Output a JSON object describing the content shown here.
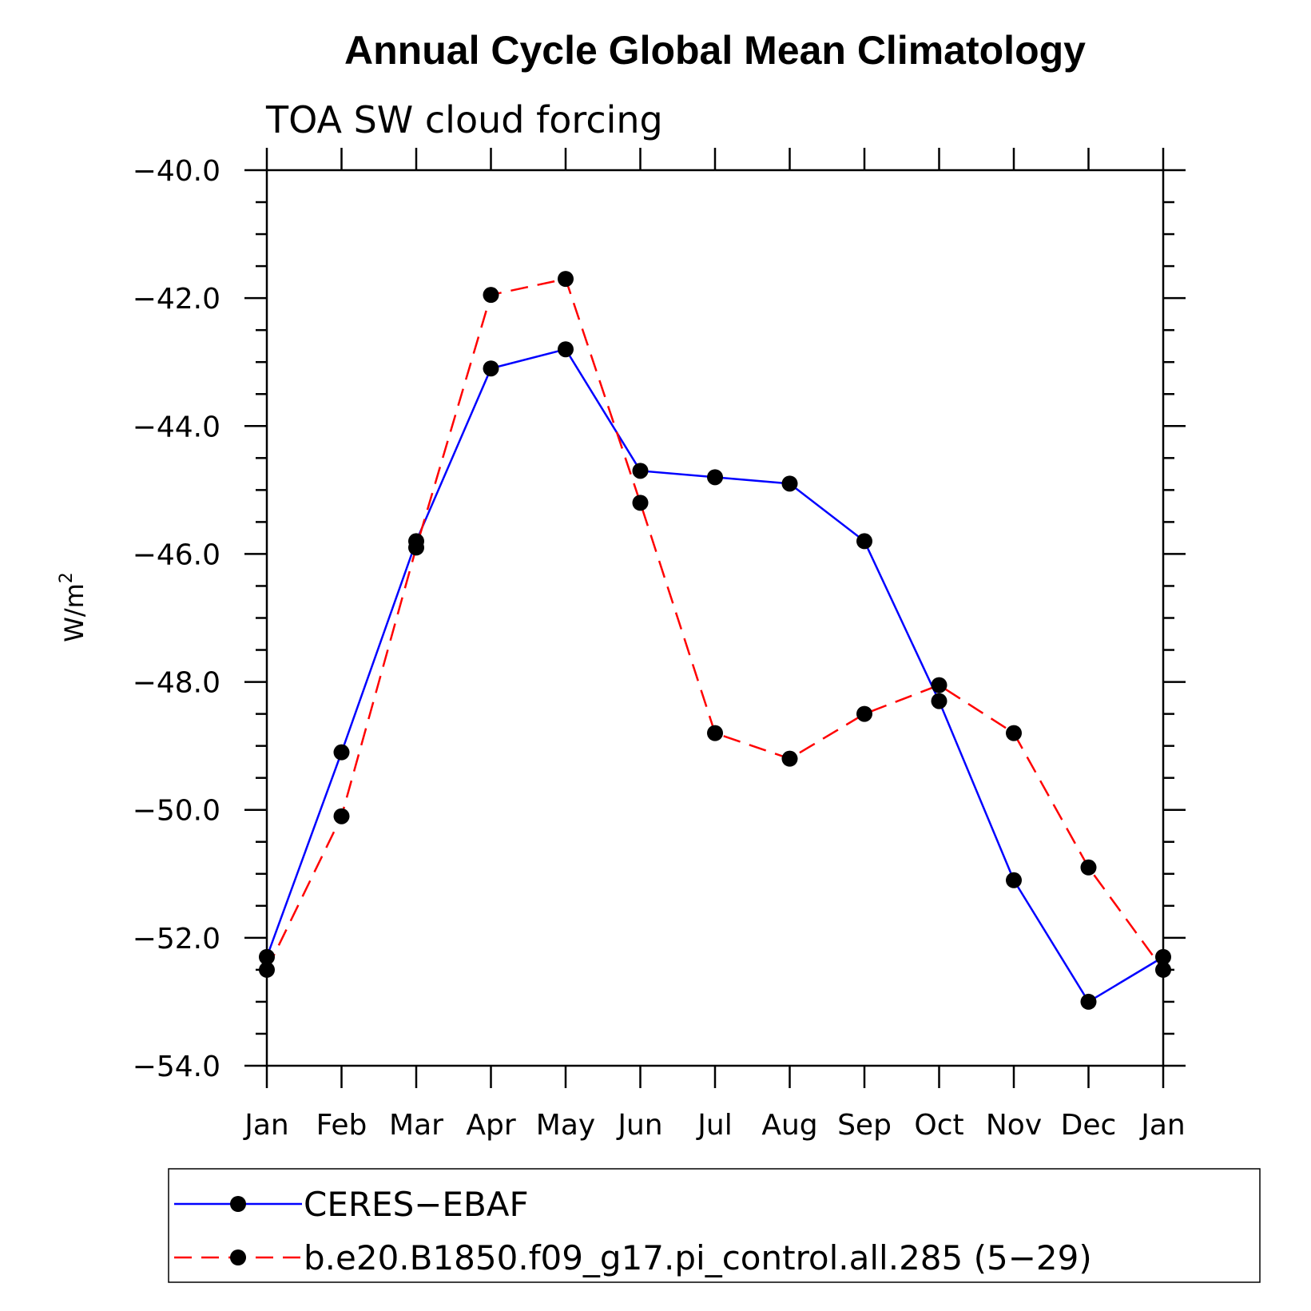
{
  "chart_data": {
    "type": "line",
    "title": "Annual Cycle Global Mean Climatology",
    "subtitle": "TOA SW cloud forcing",
    "ylabel": "W/m",
    "ylabel_sup": "2",
    "xlabel": "",
    "categories": [
      "Jan",
      "Feb",
      "Mar",
      "Apr",
      "May",
      "Jun",
      "Jul",
      "Aug",
      "Sep",
      "Oct",
      "Nov",
      "Dec",
      "Jan"
    ],
    "ylim": [
      -54.0,
      -40.0
    ],
    "yticks": [
      "-40.0",
      "-42.0",
      "-44.0",
      "-46.0",
      "-48.0",
      "-50.0",
      "-52.0",
      "-54.0"
    ],
    "ytick_values": [
      -40,
      -42,
      -44,
      -46,
      -48,
      -50,
      -52,
      -54
    ],
    "legend_position": "bottom",
    "grid": false,
    "series": [
      {
        "name": "CERES−EBAF",
        "color": "#0000ff",
        "dash": "solid",
        "marker": "filled-circle",
        "values": [
          -52.3,
          -49.1,
          -45.8,
          -43.1,
          -42.8,
          -44.7,
          -44.8,
          -44.9,
          -45.8,
          -48.3,
          -51.1,
          -53.0,
          -52.3
        ]
      },
      {
        "name": "b.e20.B1850.f09_g17.pi_control.all.285 (5−29)",
        "color": "#ff0000",
        "dash": "dashed",
        "marker": "filled-circle",
        "values": [
          -52.5,
          -50.1,
          -45.9,
          -41.95,
          -41.7,
          -45.2,
          -48.8,
          -49.2,
          -48.5,
          -48.05,
          -48.8,
          -50.9,
          -52.5
        ]
      }
    ]
  }
}
